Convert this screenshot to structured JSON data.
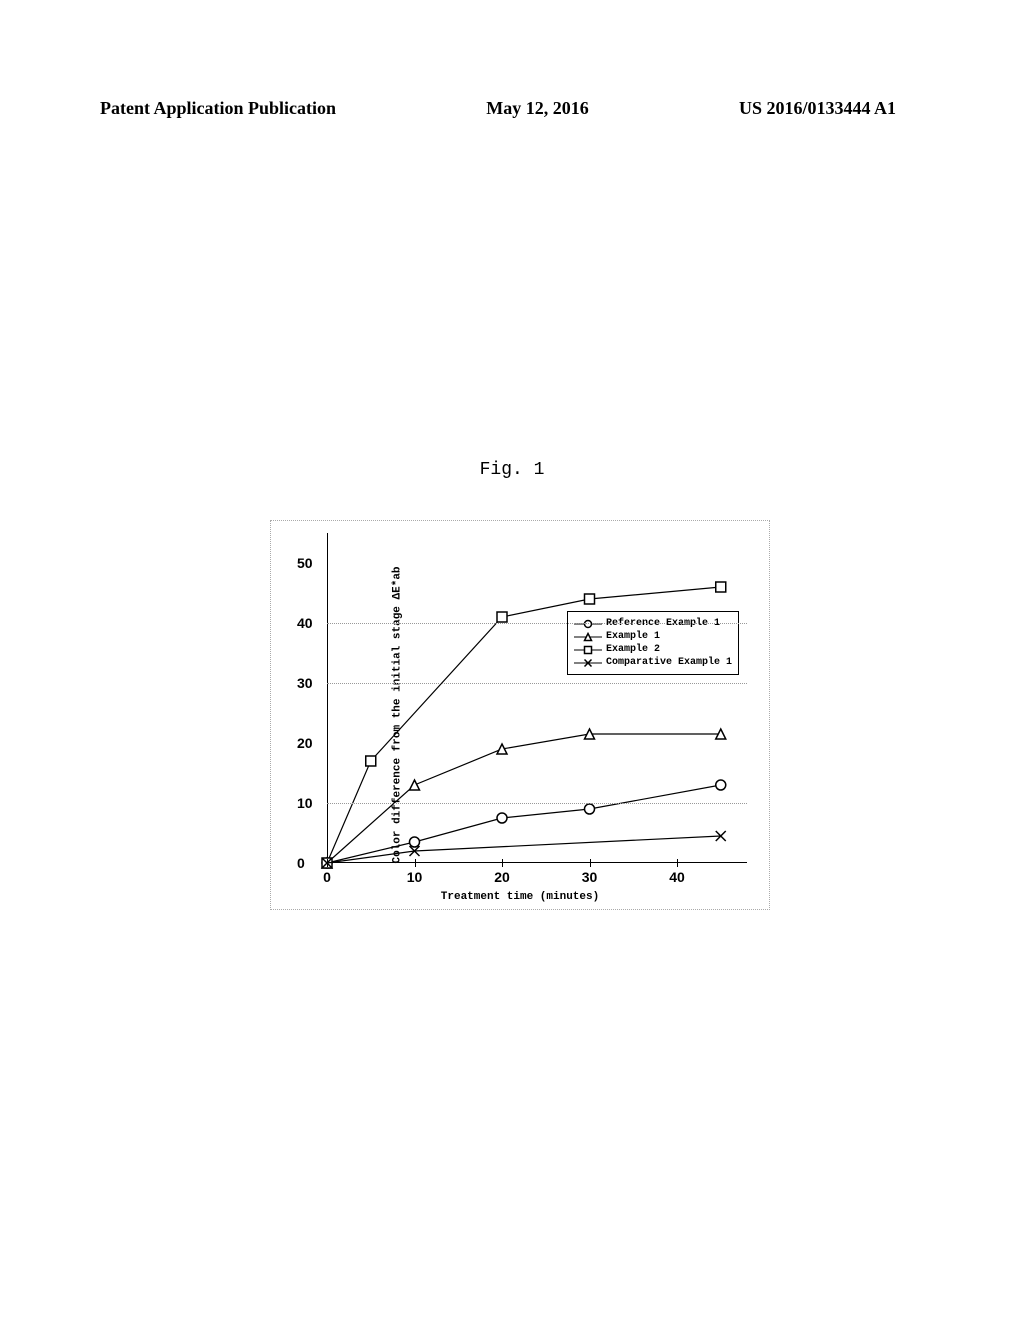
{
  "header": {
    "left": "Patent Application Publication",
    "center": "May 12, 2016",
    "right": "US 2016/0133444 A1"
  },
  "figure_label": "Fig. 1",
  "chart": {
    "type": "line",
    "x_axis_label": "Treatment time (minutes)",
    "y_axis_label": "Color difference from the initial stage  ΔE*ab",
    "xlim": [
      0,
      48
    ],
    "ylim": [
      0,
      55
    ],
    "x_ticks": [
      0,
      10,
      20,
      30,
      40
    ],
    "y_ticks": [
      0,
      10,
      20,
      30,
      40,
      50
    ],
    "grid_y_values": [
      10,
      30,
      40
    ],
    "background_color": "#ffffff",
    "grid_color": "#999999",
    "axis_color": "#000000",
    "line_color": "#000000",
    "line_width": 1.2,
    "marker_size": 10,
    "label_fontsize": 11,
    "tick_fontsize": 14,
    "series": [
      {
        "name": "Reference Example 1",
        "marker": "circle",
        "x": [
          0,
          10,
          20,
          30,
          45
        ],
        "y": [
          0,
          3.5,
          7.5,
          9,
          13
        ]
      },
      {
        "name": "Example 1",
        "marker": "triangle",
        "x": [
          0,
          10,
          20,
          30,
          45
        ],
        "y": [
          0,
          13,
          19,
          21.5,
          21.5
        ]
      },
      {
        "name": "Example 2",
        "marker": "square",
        "x": [
          0,
          5,
          20,
          30,
          45
        ],
        "y": [
          0,
          17,
          41,
          44,
          46
        ]
      },
      {
        "name": "Comparative Example 1",
        "marker": "x",
        "x": [
          0,
          10,
          45
        ],
        "y": [
          0,
          2,
          4.5
        ]
      }
    ]
  }
}
